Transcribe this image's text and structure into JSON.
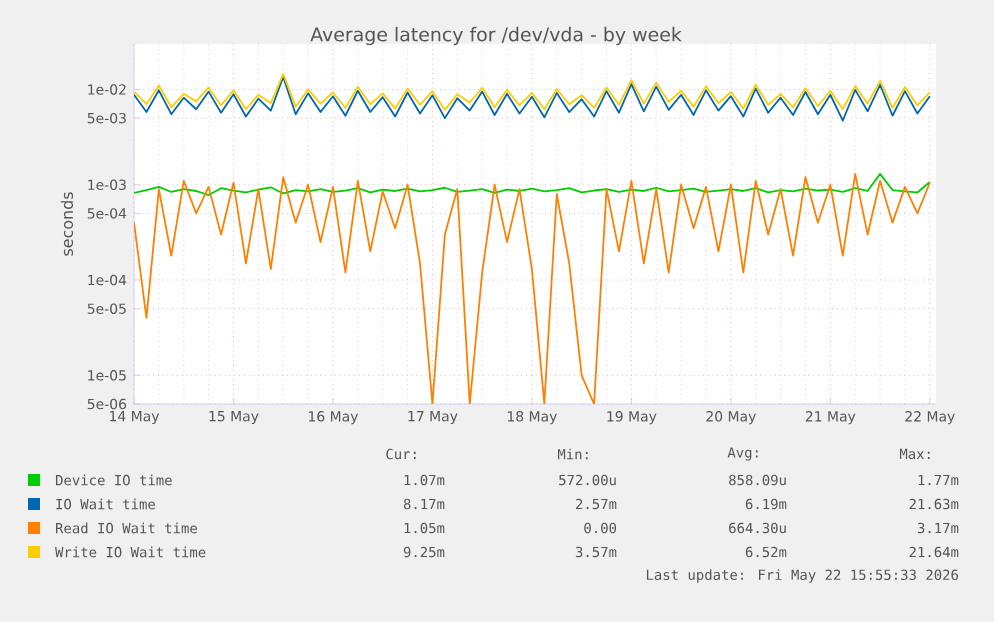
{
  "chart_data": {
    "type": "line",
    "title": "Average latency for /dev/vda - by week",
    "ylabel": "seconds",
    "log": "y",
    "grid": true,
    "legend": "bottom",
    "marker": "none",
    "line_style": "solid",
    "xlim": [
      "2026-05-14T00:00",
      "2026-05-22T01:30"
    ],
    "ylim": [
      5e-06,
      0.03
    ],
    "xticks": [
      {
        "value": "2026-05-14",
        "label": "14 May"
      },
      {
        "value": "2026-05-15",
        "label": "15 May"
      },
      {
        "value": "2026-05-16",
        "label": "16 May"
      },
      {
        "value": "2026-05-17",
        "label": "17 May"
      },
      {
        "value": "2026-05-18",
        "label": "18 May"
      },
      {
        "value": "2026-05-19",
        "label": "19 May"
      },
      {
        "value": "2026-05-20",
        "label": "20 May"
      },
      {
        "value": "2026-05-21",
        "label": "21 May"
      },
      {
        "value": "2026-05-22",
        "label": "22 May"
      }
    ],
    "yticks": [
      {
        "value": 5e-06,
        "label": "5e-06"
      },
      {
        "value": 1e-05,
        "label": "1e-05"
      },
      {
        "value": 5e-05,
        "label": "5e-05"
      },
      {
        "value": 0.0001,
        "label": "1e-04"
      },
      {
        "value": 0.0005,
        "label": "5e-04"
      },
      {
        "value": 0.001,
        "label": "1e-03"
      },
      {
        "value": 0.005,
        "label": "5e-03"
      },
      {
        "value": 0.01,
        "label": "1e-02"
      }
    ],
    "x": [
      "2026-05-14T00:00",
      "2026-05-14T03:00",
      "2026-05-14T06:00",
      "2026-05-14T09:00",
      "2026-05-14T12:00",
      "2026-05-14T15:00",
      "2026-05-14T18:00",
      "2026-05-14T21:00",
      "2026-05-15T00:00",
      "2026-05-15T03:00",
      "2026-05-15T06:00",
      "2026-05-15T09:00",
      "2026-05-15T12:00",
      "2026-05-15T15:00",
      "2026-05-15T18:00",
      "2026-05-15T21:00",
      "2026-05-16T00:00",
      "2026-05-16T03:00",
      "2026-05-16T06:00",
      "2026-05-16T09:00",
      "2026-05-16T12:00",
      "2026-05-16T15:00",
      "2026-05-16T18:00",
      "2026-05-16T21:00",
      "2026-05-17T00:00",
      "2026-05-17T03:00",
      "2026-05-17T06:00",
      "2026-05-17T09:00",
      "2026-05-17T12:00",
      "2026-05-17T15:00",
      "2026-05-17T18:00",
      "2026-05-17T21:00",
      "2026-05-18T00:00",
      "2026-05-18T03:00",
      "2026-05-18T06:00",
      "2026-05-18T09:00",
      "2026-05-18T12:00",
      "2026-05-18T15:00",
      "2026-05-18T18:00",
      "2026-05-18T21:00",
      "2026-05-19T00:00",
      "2026-05-19T03:00",
      "2026-05-19T06:00",
      "2026-05-19T09:00",
      "2026-05-19T12:00",
      "2026-05-19T15:00",
      "2026-05-19T18:00",
      "2026-05-19T21:00",
      "2026-05-20T00:00",
      "2026-05-20T03:00",
      "2026-05-20T06:00",
      "2026-05-20T09:00",
      "2026-05-20T12:00",
      "2026-05-20T15:00",
      "2026-05-20T18:00",
      "2026-05-20T21:00",
      "2026-05-21T00:00",
      "2026-05-21T03:00",
      "2026-05-21T06:00",
      "2026-05-21T09:00",
      "2026-05-21T12:00",
      "2026-05-21T15:00",
      "2026-05-21T18:00",
      "2026-05-21T21:00",
      "2026-05-22T00:00"
    ],
    "series": [
      {
        "name": "Device IO time",
        "color": "#00cc00",
        "values": [
          0.00082,
          0.00088,
          0.00095,
          0.00084,
          0.0009,
          0.00086,
          0.00078,
          0.00092,
          0.00087,
          0.00083,
          0.00089,
          0.00094,
          0.00081,
          0.00088,
          0.00085,
          0.0009,
          0.00084,
          0.00087,
          0.00092,
          0.00083,
          0.00089,
          0.00086,
          0.00091,
          0.00085,
          0.00088,
          0.00093,
          0.00084,
          0.00087,
          0.0009,
          0.00082,
          0.00089,
          0.00086,
          0.00091,
          0.00085,
          0.00088,
          0.00092,
          0.00083,
          0.00087,
          0.0009,
          0.00084,
          0.00089,
          0.00086,
          0.00093,
          0.00085,
          0.00088,
          0.00091,
          0.00084,
          0.00087,
          0.0009,
          0.00086,
          0.00092,
          0.00083,
          0.00088,
          0.00085,
          0.00091,
          0.00087,
          0.00089,
          0.00084,
          0.00092,
          0.00086,
          0.0013,
          0.00088,
          0.00085,
          0.00083,
          0.00107
        ]
      },
      {
        "name": "IO Wait time",
        "color": "#0066b3",
        "values": [
          0.0088,
          0.0058,
          0.0098,
          0.0055,
          0.0082,
          0.0062,
          0.0095,
          0.0057,
          0.0089,
          0.0052,
          0.008,
          0.006,
          0.0135,
          0.0055,
          0.0091,
          0.0058,
          0.0085,
          0.0053,
          0.0097,
          0.0058,
          0.0083,
          0.0052,
          0.0093,
          0.0056,
          0.0087,
          0.005,
          0.0081,
          0.006,
          0.0095,
          0.0054,
          0.009,
          0.0056,
          0.0084,
          0.0051,
          0.0092,
          0.0058,
          0.0079,
          0.0052,
          0.0096,
          0.0057,
          0.0114,
          0.0059,
          0.0107,
          0.0061,
          0.0088,
          0.0054,
          0.0098,
          0.006,
          0.0085,
          0.0052,
          0.0102,
          0.0057,
          0.0082,
          0.0054,
          0.0094,
          0.0055,
          0.0088,
          0.0047,
          0.0099,
          0.0059,
          0.0112,
          0.0053,
          0.0096,
          0.0056,
          0.0085
        ]
      },
      {
        "name": "Read IO Wait time",
        "color": "#ff8000",
        "values": [
          0.0004,
          4e-05,
          0.0009,
          0.00018,
          0.0011,
          0.0005,
          0.00095,
          0.0003,
          0.00105,
          0.00015,
          0.0009,
          0.00013,
          0.0012,
          0.0004,
          0.001,
          0.00025,
          0.00095,
          0.00012,
          0.0011,
          0.0002,
          0.00085,
          0.00035,
          0.001,
          0.00015,
          5e-06,
          0.0003,
          0.0009,
          5e-06,
          0.00012,
          0.001,
          0.00025,
          0.0009,
          0.00013,
          5e-06,
          0.0008,
          0.00015,
          1e-05,
          5e-06,
          0.0009,
          0.0002,
          0.0011,
          0.00015,
          0.0009,
          0.00012,
          0.001,
          0.00035,
          0.00095,
          0.0002,
          0.001,
          0.00012,
          0.0011,
          0.0003,
          0.0009,
          0.00018,
          0.0012,
          0.0004,
          0.001,
          0.00018,
          0.0013,
          0.0003,
          0.0011,
          0.0004,
          0.00095,
          0.0005,
          0.00105
        ]
      },
      {
        "name": "Write IO Wait time",
        "color": "#ffcc00",
        "values": [
          0.0095,
          0.007,
          0.011,
          0.0065,
          0.009,
          0.0075,
          0.0105,
          0.0068,
          0.0098,
          0.0062,
          0.0088,
          0.0072,
          0.0145,
          0.0066,
          0.01,
          0.0071,
          0.0093,
          0.0064,
          0.0107,
          0.007,
          0.0091,
          0.0063,
          0.0102,
          0.0069,
          0.0096,
          0.0061,
          0.0089,
          0.0073,
          0.0104,
          0.0065,
          0.0099,
          0.0068,
          0.0092,
          0.0062,
          0.0101,
          0.007,
          0.0087,
          0.0064,
          0.0105,
          0.0069,
          0.0125,
          0.0071,
          0.0118,
          0.0074,
          0.0097,
          0.0066,
          0.0108,
          0.0072,
          0.0094,
          0.0063,
          0.0112,
          0.0069,
          0.009,
          0.0065,
          0.0103,
          0.0067,
          0.0097,
          0.0062,
          0.0109,
          0.0071,
          0.0123,
          0.0064,
          0.0106,
          0.0068,
          0.0093
        ]
      }
    ],
    "annotations": [
      "Cur:",
      "Min:",
      "Avg:",
      "Max:",
      "1.07m",
      "572.00u",
      "858.09u",
      "1.77m",
      "8.17m",
      "2.57m",
      "6.19m",
      "21.63m",
      "1.05m",
      "0.00",
      "664.30u",
      "3.17m",
      "9.25m",
      "3.57m",
      "6.52m",
      "21.64m",
      "Last update: Fri May 22 15:55:33 2026"
    ]
  }
}
